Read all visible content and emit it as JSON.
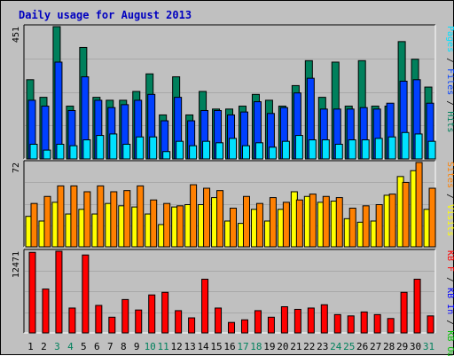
{
  "title": "Daily usage for August 2013",
  "colors": {
    "background": "#c0c0c0",
    "title": "#0000c0",
    "panel_bg": "#c0c0c0",
    "hits": "#00805c",
    "files": "#0040ff",
    "pages": "#00e0ff",
    "visits": "#ffff00",
    "sites": "#ff8000",
    "kbf": "#ff0000",
    "kbin": "#0000ff",
    "kbout": "#00c000",
    "weekday": "#000000",
    "weekend": "#00805c"
  },
  "chart_data": [
    {
      "type": "bar",
      "title": "Daily usage for August 2013",
      "ymax_label": "451",
      "ylim": [
        0,
        451
      ],
      "series": [
        {
          "name": "Hits",
          "values": [
            270,
            210,
            451,
            180,
            380,
            210,
            200,
            200,
            230,
            290,
            150,
            280,
            150,
            230,
            170,
            170,
            180,
            220,
            200,
            180,
            250,
            335,
            210,
            330,
            180,
            335,
            180,
            180,
            400,
            340,
            245
          ]
        },
        {
          "name": "Files",
          "values": [
            200,
            180,
            330,
            165,
            280,
            200,
            175,
            185,
            200,
            220,
            130,
            210,
            130,
            165,
            165,
            150,
            160,
            195,
            155,
            175,
            225,
            275,
            170,
            170,
            170,
            175,
            170,
            190,
            265,
            270,
            190
          ]
        },
        {
          "name": "Pages",
          "values": [
            50,
            30,
            50,
            45,
            65,
            80,
            85,
            50,
            75,
            75,
            25,
            60,
            45,
            60,
            55,
            70,
            45,
            55,
            40,
            60,
            80,
            65,
            65,
            50,
            65,
            65,
            70,
            75,
            90,
            85,
            60
          ]
        }
      ],
      "legend": [
        "Hits",
        "Files",
        "Pages"
      ],
      "legend_placement": "right"
    },
    {
      "type": "bar",
      "ymax_label": "72",
      "ylim": [
        0,
        72
      ],
      "series": [
        {
          "name": "Visits",
          "values": [
            26,
            22,
            38,
            28,
            32,
            28,
            37,
            35,
            34,
            28,
            19,
            34,
            36,
            36,
            42,
            22,
            20,
            32,
            22,
            32,
            47,
            43,
            38,
            39,
            24,
            21,
            22,
            44,
            60,
            65,
            32
          ]
        },
        {
          "name": "Sites",
          "values": [
            37,
            43,
            52,
            52,
            47,
            52,
            47,
            48,
            52,
            40,
            37,
            35,
            53,
            50,
            48,
            33,
            43,
            37,
            42,
            38,
            40,
            45,
            43,
            42,
            33,
            35,
            36,
            45,
            55,
            72,
            50
          ]
        }
      ],
      "legend": [
        "Visits",
        "Sites"
      ],
      "legend_placement": "right"
    },
    {
      "type": "bar",
      "ymax_label": "12471",
      "ylim": [
        0,
        12471
      ],
      "series": [
        {
          "name": "KB F",
          "values": [
            12300,
            6700,
            12471,
            3800,
            11900,
            4200,
            2400,
            5100,
            3500,
            5800,
            6200,
            3400,
            2300,
            8200,
            3800,
            1600,
            2000,
            3400,
            2400,
            4000,
            3600,
            3800,
            4300,
            2800,
            2600,
            3200,
            2800,
            2200,
            6200,
            8200,
            2600
          ]
        }
      ],
      "legend": [
        "KB F",
        "KB In",
        "KB Out"
      ],
      "legend_placement": "right"
    }
  ],
  "days": [
    {
      "label": "1",
      "weekend": false
    },
    {
      "label": "2",
      "weekend": false
    },
    {
      "label": "3",
      "weekend": true
    },
    {
      "label": "4",
      "weekend": true
    },
    {
      "label": "5",
      "weekend": false
    },
    {
      "label": "6",
      "weekend": false
    },
    {
      "label": "7",
      "weekend": false
    },
    {
      "label": "8",
      "weekend": false
    },
    {
      "label": "9",
      "weekend": false
    },
    {
      "label": "10",
      "weekend": true
    },
    {
      "label": "11",
      "weekend": true
    },
    {
      "label": "12",
      "weekend": false
    },
    {
      "label": "13",
      "weekend": false
    },
    {
      "label": "14",
      "weekend": false
    },
    {
      "label": "15",
      "weekend": false
    },
    {
      "label": "16",
      "weekend": false
    },
    {
      "label": "17",
      "weekend": true
    },
    {
      "label": "18",
      "weekend": true
    },
    {
      "label": "19",
      "weekend": false
    },
    {
      "label": "20",
      "weekend": false
    },
    {
      "label": "21",
      "weekend": false
    },
    {
      "label": "22",
      "weekend": false
    },
    {
      "label": "23",
      "weekend": false
    },
    {
      "label": "24",
      "weekend": true
    },
    {
      "label": "25",
      "weekend": true
    },
    {
      "label": "26",
      "weekend": false
    },
    {
      "label": "27",
      "weekend": false
    },
    {
      "label": "28",
      "weekend": false
    },
    {
      "label": "29",
      "weekend": false
    },
    {
      "label": "30",
      "weekend": false
    },
    {
      "label": "31",
      "weekend": true
    }
  ],
  "legend_text": {
    "p1": [
      {
        "text": "Pages",
        "color": "#00e0ff"
      },
      {
        "text": " / ",
        "color": "#000000"
      },
      {
        "text": "Files",
        "color": "#0040ff"
      },
      {
        "text": " / ",
        "color": "#000000"
      },
      {
        "text": "Hits",
        "color": "#00805c"
      }
    ],
    "p2": [
      {
        "text": "Sites",
        "color": "#ff8000"
      },
      {
        "text": " / ",
        "color": "#000000"
      },
      {
        "text": "Visits",
        "color": "#ffff00"
      }
    ],
    "p3": [
      {
        "text": "KB F",
        "color": "#ff0000"
      },
      {
        "text": " / ",
        "color": "#000000"
      },
      {
        "text": "KB In",
        "color": "#0000ff"
      },
      {
        "text": " / ",
        "color": "#000000"
      },
      {
        "text": "KB Out",
        "color": "#00c000"
      }
    ]
  }
}
